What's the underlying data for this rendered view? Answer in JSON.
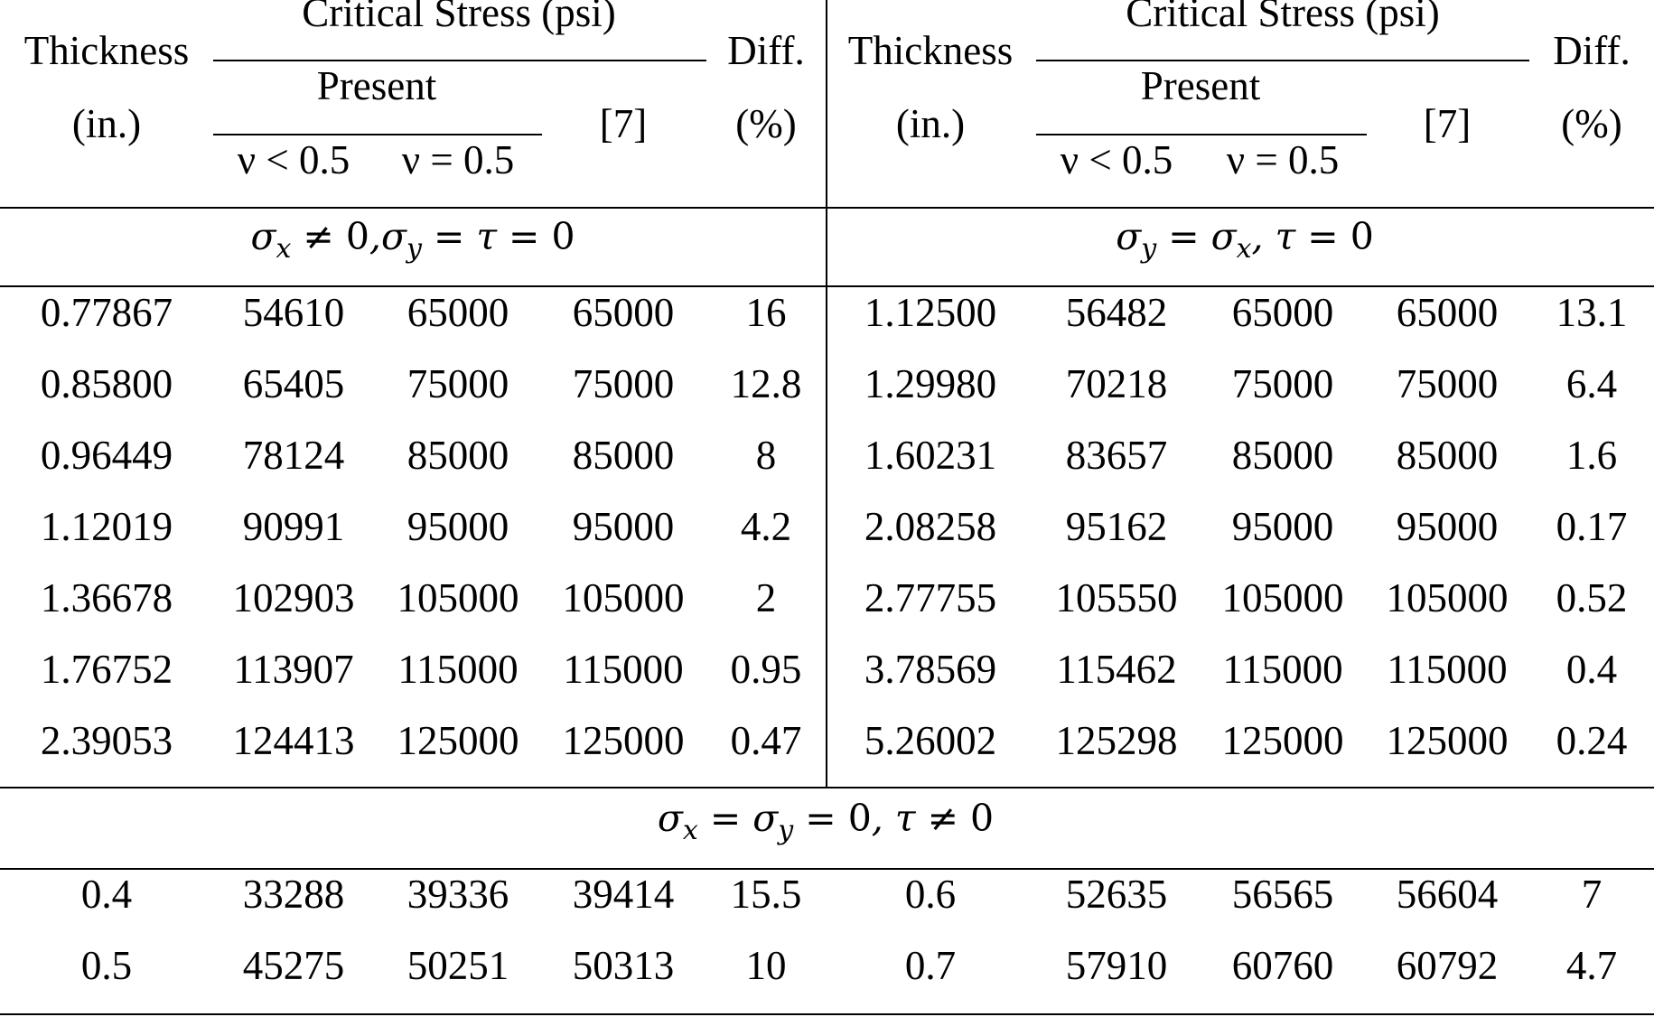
{
  "header": {
    "critical_stress": "Critical Stress (psi)",
    "thickness": "Thickness",
    "thickness_unit": "(in.)",
    "present": "Present",
    "nu_lt": "ν < 0.5",
    "nu_eq": "ν = 0.5",
    "ref": "[7]",
    "diff": "Diff.",
    "diff_unit": "(%)"
  },
  "case_a_label": "σx ≠ 0, σy = τ = 0",
  "case_b_label": "σy = σx, τ = 0",
  "case_c_label": "σx = σy = 0, τ ≠ 0",
  "rows_top": [
    [
      "0.77867",
      "54610",
      "65000",
      "65000",
      "16",
      "1.12500",
      "56482",
      "65000",
      "65000",
      "13.1"
    ],
    [
      "0.85800",
      "65405",
      "75000",
      "75000",
      "12.8",
      "1.29980",
      "70218",
      "75000",
      "75000",
      "6.4"
    ],
    [
      "0.96449",
      "78124",
      "85000",
      "85000",
      "8",
      "1.60231",
      "83657",
      "85000",
      "85000",
      "1.6"
    ],
    [
      "1.12019",
      "90991",
      "95000",
      "95000",
      "4.2",
      "2.08258",
      "95162",
      "95000",
      "95000",
      "0.17"
    ],
    [
      "1.36678",
      "102903",
      "105000",
      "105000",
      "2",
      "2.77755",
      "105550",
      "105000",
      "105000",
      "0.52"
    ],
    [
      "1.76752",
      "113907",
      "115000",
      "115000",
      "0.95",
      "3.78569",
      "115462",
      "115000",
      "115000",
      "0.4"
    ],
    [
      "2.39053",
      "124413",
      "125000",
      "125000",
      "0.47",
      "5.26002",
      "125298",
      "125000",
      "125000",
      "0.24"
    ]
  ],
  "rows_bottom": [
    [
      "0.4",
      "33288",
      "39336",
      "39414",
      "15.5",
      "0.6",
      "52635",
      "56565",
      "56604",
      "7"
    ],
    [
      "0.5",
      "45275",
      "50251",
      "50313",
      "10",
      "0.7",
      "57910",
      "60760",
      "60792",
      "4.7"
    ]
  ]
}
